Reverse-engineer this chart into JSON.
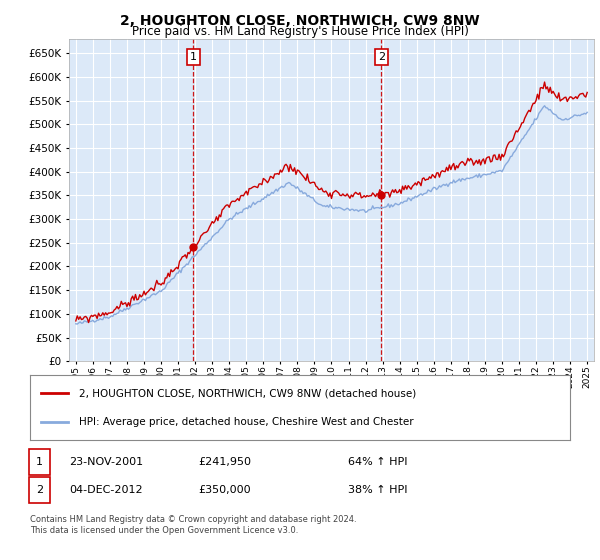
{
  "title": "2, HOUGHTON CLOSE, NORTHWICH, CW9 8NW",
  "subtitle": "Price paid vs. HM Land Registry's House Price Index (HPI)",
  "legend_line1": "2, HOUGHTON CLOSE, NORTHWICH, CW9 8NW (detached house)",
  "legend_line2": "HPI: Average price, detached house, Cheshire West and Chester",
  "transaction1_date": "23-NOV-2001",
  "transaction1_price": "£241,950",
  "transaction1_hpi": "64% ↑ HPI",
  "transaction1_x": 2001.9,
  "transaction1_y": 241950,
  "transaction2_date": "04-DEC-2012",
  "transaction2_price": "£350,000",
  "transaction2_hpi": "38% ↑ HPI",
  "transaction2_x": 2012.92,
  "transaction2_y": 350000,
  "footnote1": "Contains HM Land Registry data © Crown copyright and database right 2024.",
  "footnote2": "This data is licensed under the Open Government Licence v3.0.",
  "plot_bg_color": "#dce9f8",
  "grid_color": "#ffffff",
  "red_line_color": "#cc0000",
  "blue_line_color": "#88aadd",
  "ylim": [
    0,
    680000
  ],
  "ytick_max": 650000,
  "xlim_start": 1994.6,
  "xlim_end": 2025.4
}
